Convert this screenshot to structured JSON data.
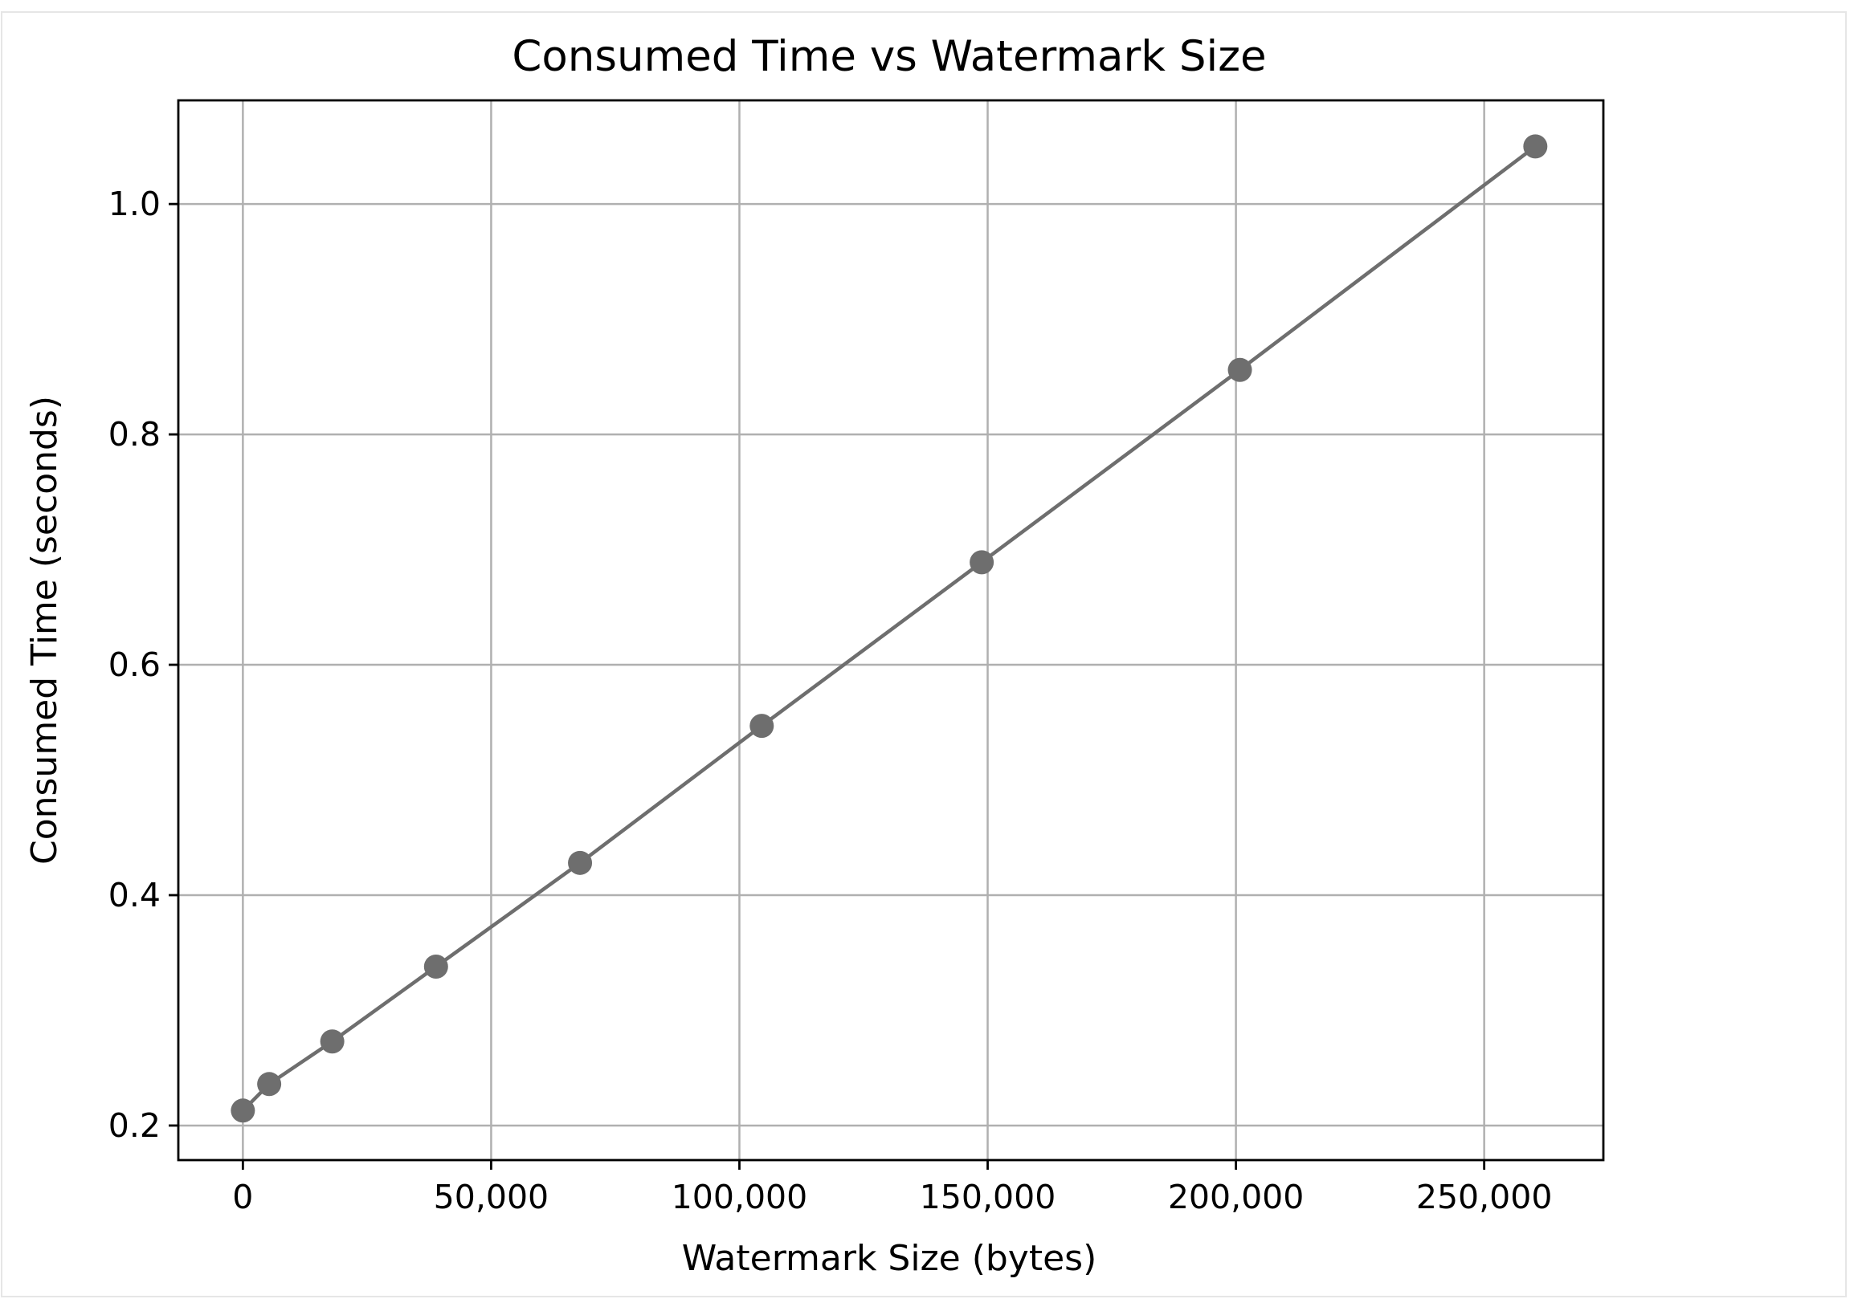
{
  "chart_data": {
    "type": "line",
    "title": "Consumed Time vs Watermark Size",
    "xlabel": "Watermark Size (bytes)",
    "ylabel": "Consumed Time (seconds)",
    "xlim": [
      -13000,
      274000
    ],
    "ylim": [
      0.17,
      1.09
    ],
    "xticks": [
      0,
      50000,
      100000,
      150000,
      200000,
      250000
    ],
    "xtick_labels": [
      "0",
      "50,000",
      "100,000",
      "150,000",
      "200,000",
      "250,000"
    ],
    "yticks": [
      0.2,
      0.4,
      0.6,
      0.8,
      1.0
    ],
    "ytick_labels": [
      "0.2",
      "0.4",
      "0.6",
      "0.8",
      "1.0"
    ],
    "grid": true,
    "legend": "none",
    "series": [
      {
        "color": "#6e6e6e",
        "marker": "circle",
        "x": [
          0,
          5300,
          18000,
          38900,
          67900,
          104500,
          148800,
          200800,
          260300
        ],
        "y": [
          0.213,
          0.236,
          0.273,
          0.338,
          0.428,
          0.547,
          0.689,
          0.856,
          1.05
        ]
      }
    ]
  }
}
